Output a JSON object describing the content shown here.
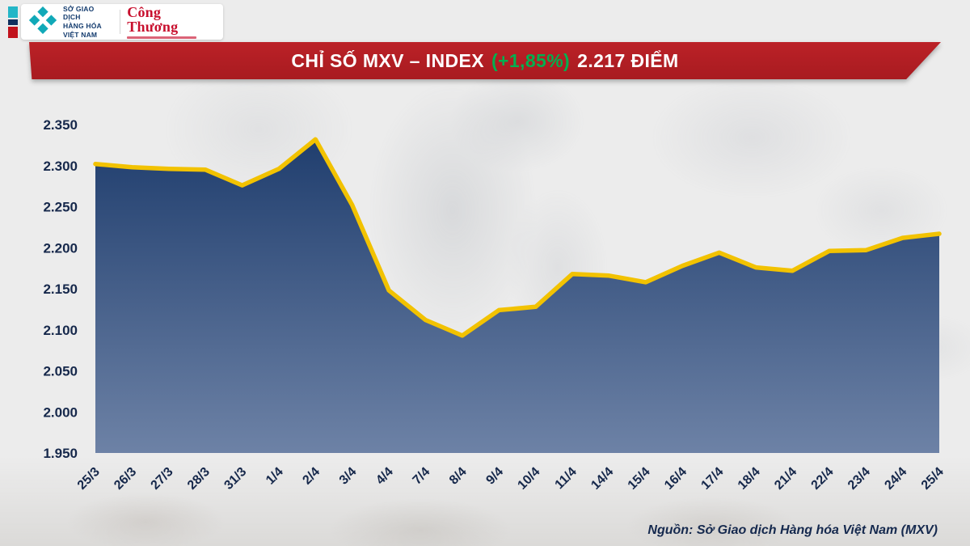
{
  "header": {
    "mxv_logo_text": "SỞ GIAO DỊCH\nHÀNG HÓA\nVIỆT NAM",
    "congthuong_logo_text": "Công Thương",
    "banner": {
      "title_main": "CHỈ SỐ MXV – INDEX",
      "title_change": "(+1,85%)",
      "title_value": "2.217 ĐIỂM"
    }
  },
  "colors": {
    "banner_red": "#b01e24",
    "change_green": "#00b050",
    "line_gold": "#f2c200",
    "fill_top": "#203e6e",
    "fill_bottom": "#6d82a6",
    "axis_text": "#16284b",
    "teal_logo": "#11a9b8"
  },
  "chart_data": {
    "type": "area",
    "title": "CHỈ SỐ MXV – INDEX (+1,85%) 2.217 ĐIỂM",
    "xlabel": "",
    "ylabel": "",
    "categories": [
      "25/3",
      "26/3",
      "27/3",
      "28/3",
      "31/3",
      "1/4",
      "2/4",
      "3/4",
      "4/4",
      "7/4",
      "8/4",
      "9/4",
      "10/4",
      "11/4",
      "14/4",
      "15/4",
      "16/4",
      "17/4",
      "18/4",
      "21/4",
      "22/4",
      "23/4",
      "24/4",
      "25/4"
    ],
    "values": [
      2302,
      2298,
      2296,
      2295,
      2276,
      2296,
      2332,
      2252,
      2148,
      2112,
      2093,
      2124,
      2128,
      2168,
      2166,
      2158,
      2178,
      2194,
      2176,
      2172,
      2196,
      2197,
      2212,
      2217
    ],
    "ylim": [
      1950,
      2350
    ],
    "yticks": [
      1950,
      2000,
      2050,
      2100,
      2150,
      2200,
      2250,
      2300,
      2350
    ],
    "ytick_labels": [
      "1.950",
      "2.000",
      "2.050",
      "2.100",
      "2.150",
      "2.200",
      "2.250",
      "2.300",
      "2.350"
    ],
    "grid": false,
    "legend": "none"
  },
  "footer": {
    "source": "Nguồn: Sở Giao dịch Hàng hóa Việt Nam (MXV)"
  }
}
